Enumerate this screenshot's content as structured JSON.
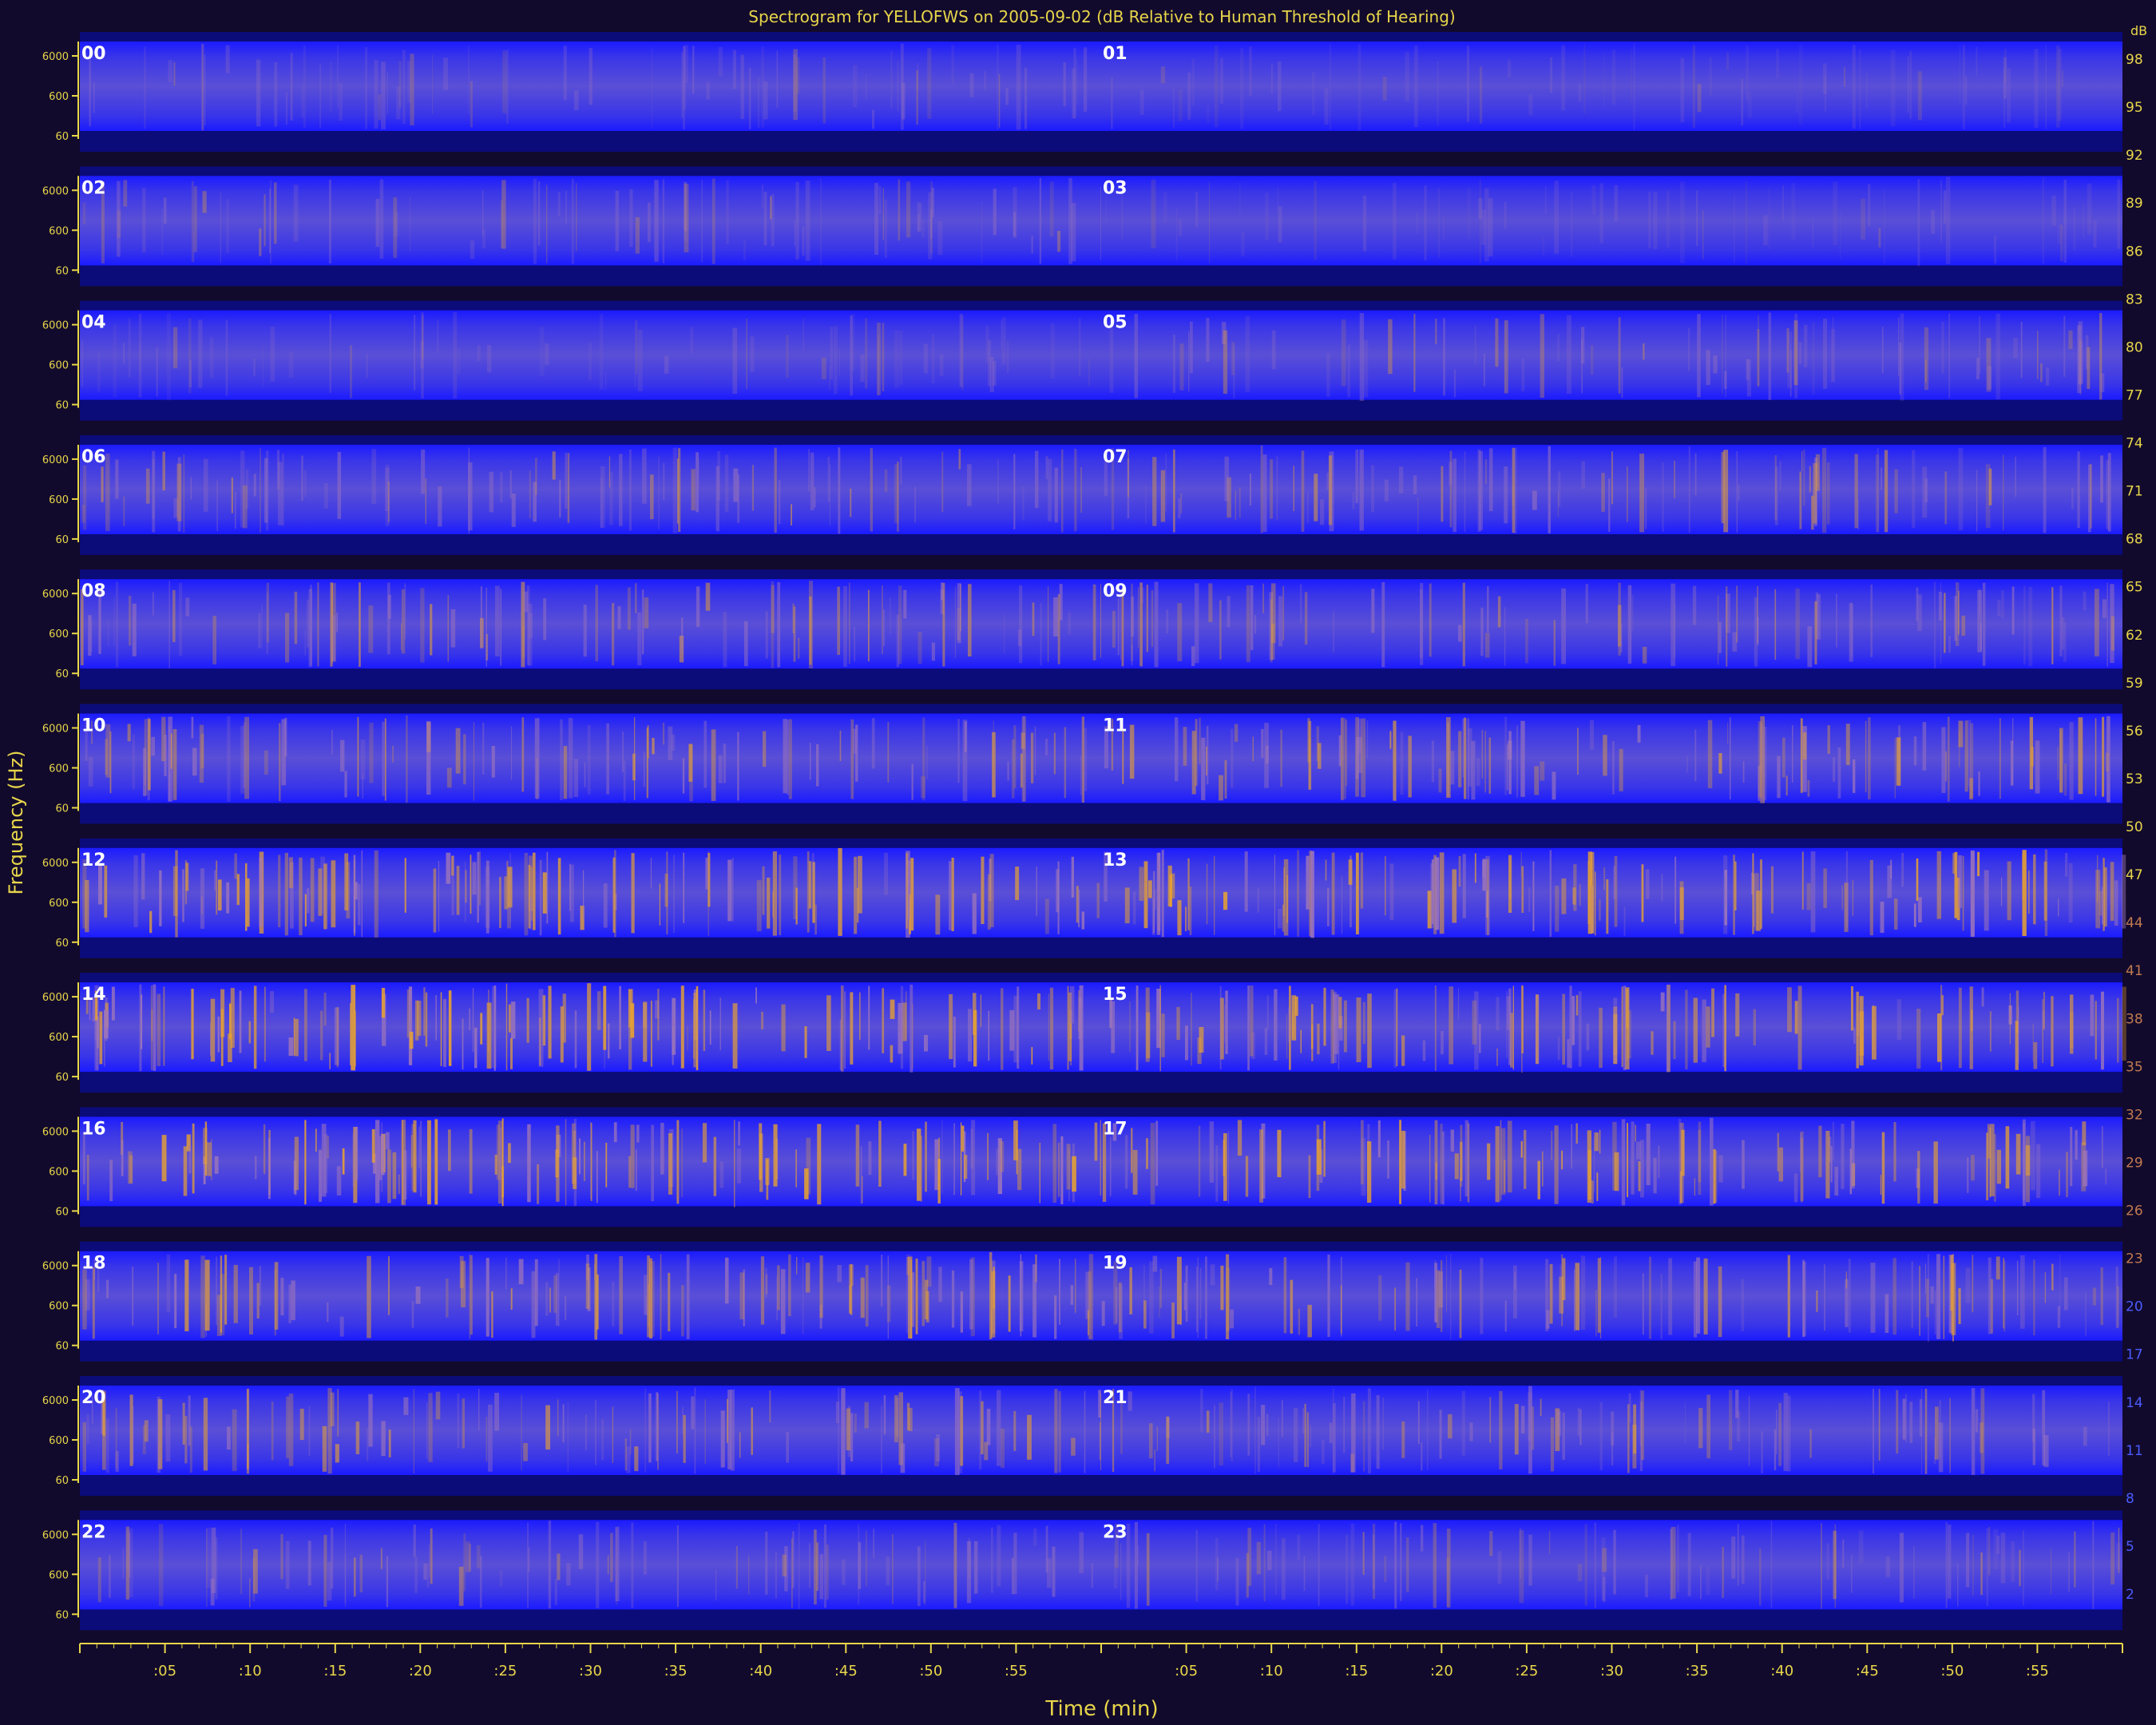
{
  "chart_data": {
    "type": "heatmap",
    "title": "Spectrogram for YELLOFWS on 2005-09-02 (dB Relative to Human Threshold of Hearing)",
    "xlabel": "Time (min)",
    "ylabel": "Frequency (Hz)",
    "x_tick_labels": [
      ":05",
      ":10",
      ":15",
      ":20",
      ":25",
      ":30",
      ":35",
      ":40",
      ":45",
      ":50",
      ":55"
    ],
    "y_tick_labels": [
      "6000",
      "600",
      "60"
    ],
    "colorbar": {
      "unit": "dB",
      "ticks": [
        98,
        95,
        92,
        89,
        86,
        83,
        80,
        77,
        74,
        71,
        68,
        65,
        62,
        59,
        56,
        53,
        50,
        47,
        44,
        41,
        38,
        35,
        32,
        29,
        26,
        23,
        20,
        17,
        14,
        11,
        8,
        5,
        2
      ]
    },
    "hours": [
      "00",
      "01",
      "02",
      "03",
      "04",
      "05",
      "06",
      "07",
      "08",
      "09",
      "10",
      "11",
      "12",
      "13",
      "14",
      "15",
      "16",
      "17",
      "18",
      "19",
      "20",
      "21",
      "22",
      "23"
    ],
    "activity": [
      0.25,
      0.18,
      0.28,
      0.18,
      0.22,
      0.3,
      0.4,
      0.42,
      0.45,
      0.42,
      0.48,
      0.55,
      0.62,
      0.66,
      0.7,
      0.62,
      0.68,
      0.62,
      0.55,
      0.5,
      0.5,
      0.42,
      0.36,
      0.32
    ],
    "colormap": [
      "#0b0b7a",
      "#1f1fff",
      "#5a4fe0",
      "#a077b8",
      "#e8a230"
    ]
  }
}
